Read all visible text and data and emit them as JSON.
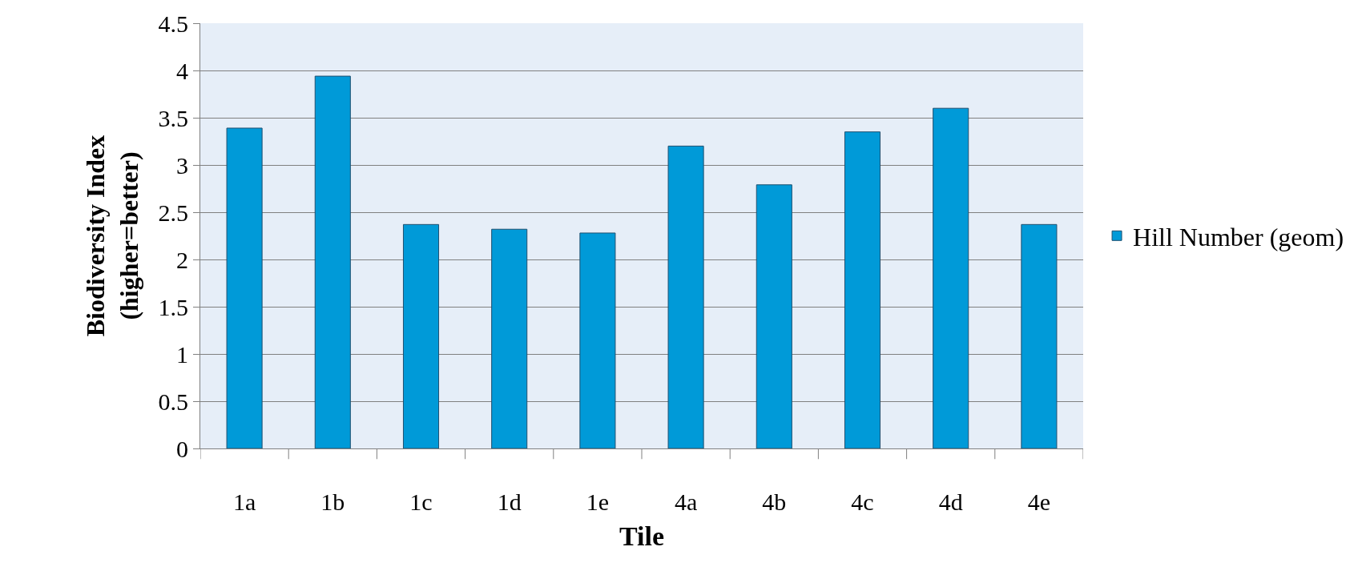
{
  "chart_data": {
    "type": "bar",
    "xlabel": "Tile",
    "ylabel": "Biodiversity Index\n(higher=better)",
    "categories": [
      "1a",
      "1b",
      "1c",
      "1d",
      "1e",
      "4a",
      "4b",
      "4c",
      "4d",
      "4e"
    ],
    "series": [
      {
        "name": "Hill Number (geom)",
        "color": "#009ad8",
        "values": [
          3.39,
          3.94,
          2.37,
          2.32,
          2.28,
          3.2,
          2.79,
          3.35,
          3.6,
          2.37
        ]
      }
    ],
    "ylim": [
      0,
      4.5
    ],
    "yticks": [
      0,
      0.5,
      1,
      1.5,
      2,
      2.5,
      3,
      3.5,
      4,
      4.5
    ],
    "grid": "y",
    "legend": "right"
  }
}
